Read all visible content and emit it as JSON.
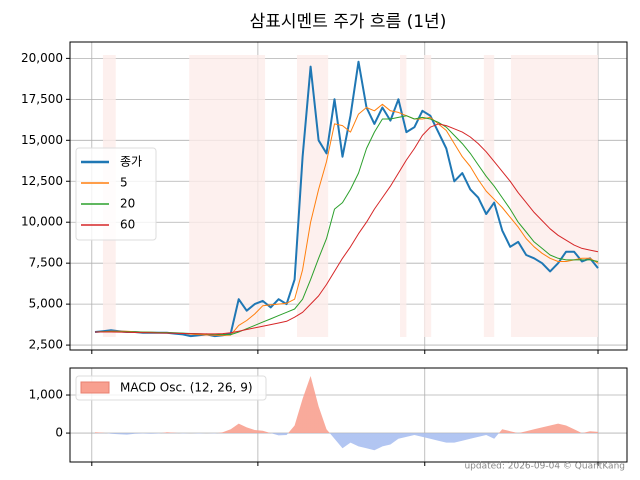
{
  "chart_data": [
    {
      "type": "line",
      "title": "삼표시멘트 주가 흐름 (1년)",
      "x": [
        0,
        1,
        2,
        3,
        4,
        5,
        6,
        7,
        8,
        9,
        10,
        11,
        12,
        13,
        14,
        15,
        16,
        17,
        18,
        19,
        20,
        21,
        22,
        23,
        24,
        25,
        26,
        27,
        28,
        29,
        30,
        31,
        32,
        33,
        34,
        35,
        36,
        37,
        38,
        39,
        40,
        41,
        42,
        43,
        44,
        45,
        46,
        47,
        48,
        49,
        50,
        51,
        52,
        53,
        54,
        55,
        56,
        57,
        58,
        59,
        60,
        61,
        62,
        63
      ],
      "series": [
        {
          "name": "종가",
          "color": "#1f77b4",
          "width": 2,
          "values": [
            3300,
            3350,
            3400,
            3350,
            3300,
            3300,
            3250,
            3250,
            3250,
            3250,
            3200,
            3150,
            3050,
            3100,
            3150,
            3050,
            3100,
            3200,
            5300,
            4600,
            5000,
            5200,
            4800,
            5300,
            5000,
            6500,
            14000,
            19500,
            15000,
            14200,
            17500,
            14000,
            16500,
            19800,
            17000,
            16000,
            17000,
            16200,
            17500,
            15500,
            15800,
            16800,
            16500,
            15500,
            14500,
            12500,
            13000,
            12000,
            11500,
            10500,
            11200,
            9500,
            8500,
            8800,
            8000,
            7800,
            7500,
            7000,
            7500,
            8200,
            8200,
            7600,
            7800,
            7200
          ]
        },
        {
          "name": "5",
          "color": "#ff7f0e",
          "width": 1,
          "values": [
            3300,
            3320,
            3340,
            3350,
            3340,
            3320,
            3300,
            3280,
            3260,
            3250,
            3240,
            3220,
            3170,
            3140,
            3120,
            3100,
            3090,
            3110,
            3700,
            4000,
            4400,
            4900,
            4950,
            5000,
            5050,
            5300,
            7100,
            10000,
            12000,
            13700,
            16000,
            15900,
            15500,
            16600,
            17000,
            16800,
            17200,
            16800,
            16700,
            16500,
            16300,
            16300,
            16400,
            16000,
            15600,
            14800,
            14000,
            13400,
            12600,
            11900,
            11400,
            10900,
            10300,
            9700,
            9000,
            8500,
            8100,
            7800,
            7600,
            7600,
            7700,
            7800,
            7800,
            7500
          ]
        },
        {
          "name": "20",
          "color": "#2ca02c",
          "width": 1,
          "values": [
            3300,
            3310,
            3320,
            3320,
            3310,
            3300,
            3290,
            3280,
            3270,
            3260,
            3250,
            3230,
            3210,
            3190,
            3170,
            3150,
            3140,
            3140,
            3300,
            3500,
            3700,
            3900,
            4100,
            4300,
            4500,
            4700,
            5300,
            6500,
            7800,
            9000,
            10800,
            11200,
            12000,
            13000,
            14500,
            15500,
            16300,
            16300,
            16400,
            16500,
            16300,
            16400,
            16300,
            16100,
            15800,
            15300,
            14800,
            14200,
            13500,
            12800,
            12200,
            11500,
            10800,
            10000,
            9400,
            8800,
            8400,
            8000,
            7800,
            7700,
            7700,
            7700,
            7700,
            7600
          ]
        },
        {
          "name": "60",
          "color": "#d62728",
          "width": 1,
          "values": [
            3300,
            3300,
            3300,
            3290,
            3280,
            3270,
            3260,
            3250,
            3240,
            3230,
            3220,
            3210,
            3200,
            3190,
            3180,
            3180,
            3200,
            3250,
            3350,
            3450,
            3550,
            3650,
            3750,
            3850,
            3950,
            4200,
            4500,
            5000,
            5500,
            6200,
            7000,
            7800,
            8500,
            9300,
            10000,
            10800,
            11500,
            12200,
            13000,
            13800,
            14500,
            15300,
            15800,
            16000,
            15900,
            15700,
            15500,
            15200,
            14800,
            14300,
            13700,
            13100,
            12500,
            11800,
            11200,
            10600,
            10100,
            9600,
            9200,
            8900,
            8600,
            8400,
            8300,
            8200
          ]
        }
      ],
      "spans": [
        [
          1,
          2.6
        ],
        [
          11.8,
          21.3
        ],
        [
          25.3,
          29.2
        ],
        [
          38.2,
          39
        ],
        [
          41.2,
          42.1
        ],
        [
          48.7,
          50
        ],
        [
          52.1,
          63
        ]
      ],
      "span_color": "#fdecea",
      "xlim": [
        -3.13,
        66.63
      ],
      "xticks": [
        -0.4,
        20.4,
        41.3,
        63
      ],
      "ylim": [
        2200,
        21000
      ],
      "yticks": [
        {
          "value": 2500,
          "label": "2,500"
        },
        {
          "value": 5000,
          "label": "5,000"
        },
        {
          "value": 7500,
          "label": "7,500"
        },
        {
          "value": 10000,
          "label": "10,000"
        },
        {
          "value": 12500,
          "label": "12,500"
        },
        {
          "value": 15000,
          "label": "15,000"
        },
        {
          "value": 17500,
          "label": "17,500"
        },
        {
          "value": 20000,
          "label": "20,000"
        }
      ],
      "grid": true,
      "legend": "center left"
    },
    {
      "type": "area",
      "name": "MACD Osc. (12, 26, 9)",
      "x": [
        0,
        1,
        2,
        3,
        4,
        5,
        6,
        7,
        8,
        9,
        10,
        11,
        12,
        13,
        14,
        15,
        16,
        17,
        18,
        19,
        20,
        21,
        22,
        23,
        24,
        25,
        26,
        27,
        28,
        29,
        30,
        31,
        32,
        33,
        34,
        35,
        36,
        37,
        38,
        39,
        40,
        41,
        42,
        43,
        44,
        45,
        46,
        47,
        48,
        49,
        50,
        51,
        52,
        53,
        54,
        55,
        56,
        57,
        58,
        59,
        60,
        61,
        62,
        63
      ],
      "values": [
        20,
        10,
        -20,
        -30,
        -40,
        -20,
        -10,
        -20,
        -10,
        20,
        10,
        -10,
        0,
        -10,
        0,
        -10,
        20,
        100,
        250,
        150,
        80,
        60,
        0,
        -60,
        -50,
        200,
        900,
        1500,
        700,
        100,
        -150,
        -400,
        -250,
        -350,
        -400,
        -450,
        -350,
        -300,
        -150,
        -100,
        -50,
        -100,
        -150,
        -200,
        -250,
        -250,
        -200,
        -150,
        -100,
        -50,
        -150,
        100,
        50,
        0,
        50,
        100,
        150,
        200,
        250,
        200,
        100,
        0,
        50,
        30
      ],
      "positive_color": "#f8a090",
      "negative_color": "#aabff0",
      "xlim": [
        -3.13,
        66.63
      ],
      "xticks": [
        -0.4,
        20.4,
        41.3,
        63
      ],
      "ylim": [
        -760,
        1710
      ],
      "yticks": [
        0,
        {
          "value": 1000,
          "label": "1,000"
        }
      ],
      "grid": true,
      "legend": "upper left"
    }
  ],
  "footer": "updated: 2026-09-04 © QuantKang"
}
